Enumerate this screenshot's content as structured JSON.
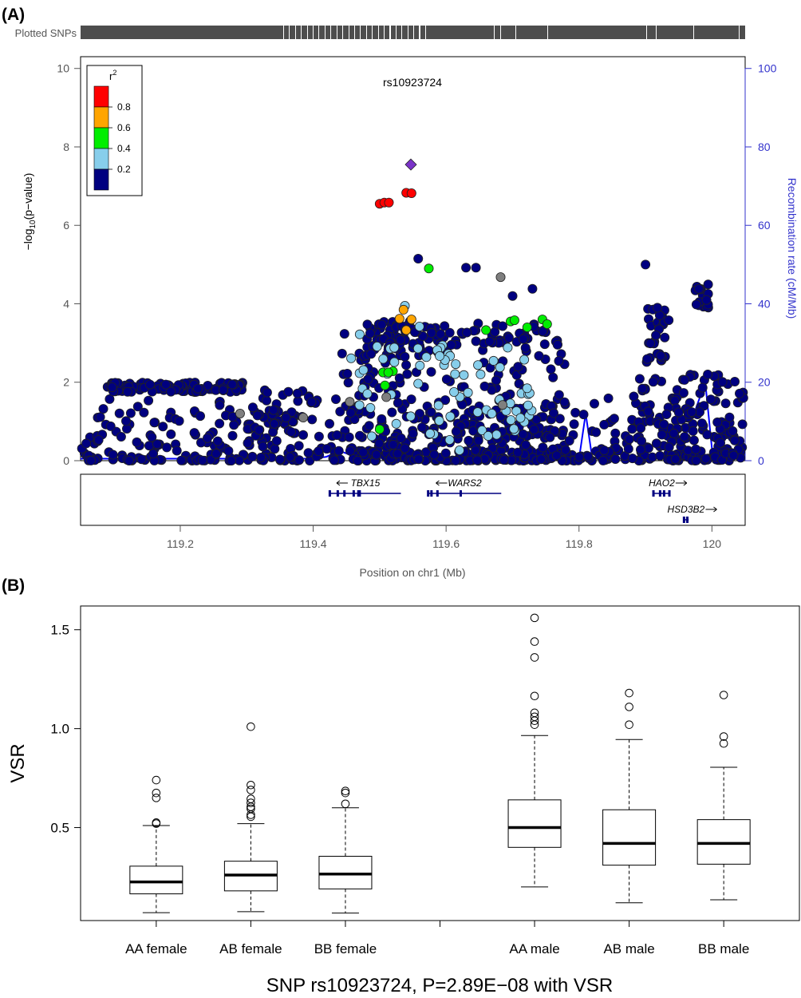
{
  "figure": {
    "panel_a_label": "(A)",
    "panel_b_label": "(B)"
  },
  "chart_data": [
    {
      "type": "scatter",
      "panel": "A",
      "strip_label": "Plotted SNPs",
      "title": "rs10923724",
      "xlabel": "Position on chr1 (Mb)",
      "ylabel_prefix": "−log",
      "ylabel_sub": "10",
      "ylabel_suffix": "(p−value)",
      "y2label": "Recombination rate (cM/Mb)",
      "xlim": [
        119.05,
        120.05
      ],
      "ylim": [
        0,
        10.3
      ],
      "y2lim": [
        0,
        103
      ],
      "xticks": [
        119.2,
        119.4,
        119.6,
        119.8,
        120
      ],
      "xtick_labels": [
        "119.2",
        "119.4",
        "119.6",
        "119.8",
        "120"
      ],
      "yticks": [
        0,
        2,
        4,
        6,
        8,
        10
      ],
      "y2ticks": [
        0,
        20,
        40,
        60,
        80,
        100
      ],
      "legend": {
        "title": "r",
        "title_sup": "2",
        "placement": "top-left",
        "labels": [
          "0.8",
          "0.6",
          "0.4",
          "0.2"
        ],
        "colors": [
          "#ff0000",
          "#ffa500",
          "#00ee00",
          "#87ceeb",
          "#000080"
        ]
      },
      "colors": {
        "r2_high": "#ff0000",
        "r2_0.6": "#ffa500",
        "r2_0.4": "#00ee00",
        "r2_0.2": "#87ceeb",
        "r2_low": "#000080",
        "no_ld": "#7f7f7f",
        "lead_snp": "#7a33c8",
        "recomb_line": "#0000ff"
      },
      "lead_snp": {
        "x": 119.547,
        "y": 7.55
      },
      "red_points": [
        [
          119.5,
          6.55
        ],
        [
          119.507,
          6.58
        ],
        [
          119.514,
          6.58
        ],
        [
          119.54,
          6.83
        ],
        [
          119.548,
          6.82
        ]
      ],
      "orange_points": [
        [
          119.536,
          3.85
        ],
        [
          119.53,
          3.62
        ],
        [
          119.548,
          3.6
        ],
        [
          119.54,
          3.33
        ]
      ],
      "green_points": [
        [
          119.574,
          4.9
        ],
        [
          119.66,
          3.33
        ],
        [
          119.697,
          3.55
        ],
        [
          119.703,
          3.58
        ],
        [
          119.722,
          3.4
        ],
        [
          119.745,
          3.6
        ],
        [
          119.752,
          3.48
        ],
        [
          119.505,
          2.25
        ],
        [
          119.52,
          2.28
        ],
        [
          119.513,
          2.25
        ],
        [
          119.508,
          1.92
        ],
        [
          119.5,
          0.8
        ]
      ],
      "grey_points": [
        [
          119.682,
          4.68
        ],
        [
          119.385,
          1.1
        ],
        [
          119.685,
          1.42
        ],
        [
          119.455,
          1.5
        ],
        [
          119.51,
          1.62
        ],
        [
          119.29,
          1.2
        ]
      ],
      "recombination": [
        [
          119.05,
          0.5
        ],
        [
          119.4,
          0.5
        ],
        [
          119.42,
          1.0
        ],
        [
          119.44,
          2.5
        ],
        [
          119.46,
          1.2
        ],
        [
          119.48,
          0.8
        ],
        [
          119.55,
          0.5
        ],
        [
          119.6,
          0.5
        ],
        [
          119.7,
          0.5
        ],
        [
          119.8,
          0.5
        ],
        [
          119.81,
          12
        ],
        [
          119.82,
          0.6
        ],
        [
          119.9,
          0.5
        ],
        [
          119.95,
          1.0
        ],
        [
          119.99,
          20
        ],
        [
          120.0,
          3
        ],
        [
          120.05,
          1.5
        ]
      ],
      "genes": [
        {
          "name": "TBX15",
          "start": 119.425,
          "end": 119.532,
          "strand": "-",
          "row": 0,
          "exons": [
            119.425,
            119.437,
            119.447,
            119.461,
            119.468,
            119.47
          ]
        },
        {
          "name": "WARS2",
          "start": 119.573,
          "end": 119.683,
          "strand": "-",
          "row": 0,
          "exons": [
            119.573,
            119.578,
            119.587,
            119.622
          ]
        },
        {
          "name": "HAO2",
          "start": 119.912,
          "end": 119.937,
          "strand": "+",
          "row": 0,
          "exons": [
            119.912,
            119.922,
            119.928,
            119.936
          ]
        },
        {
          "name": "HSD3B2",
          "start": 119.957,
          "end": 119.965,
          "strand": "+",
          "row": 1,
          "exons": [
            119.958,
            119.963
          ]
        }
      ]
    },
    {
      "type": "box",
      "panel": "B",
      "ylabel": "VSR",
      "xlabel": "SNP rs10923724, P=2.89E−08 with VSR",
      "ylim": [
        0.03,
        1.62
      ],
      "yticks": [
        0.5,
        1.0,
        1.5
      ],
      "ytick_labels": [
        "0.5",
        "1.0",
        "1.5"
      ],
      "categories": [
        "AA female",
        "AB female",
        "BB female",
        "AA male",
        "AB male",
        "BB male"
      ],
      "boxes": [
        {
          "label": "AA female",
          "whisker_low": 0.07,
          "q1": 0.165,
          "median": 0.225,
          "q3": 0.305,
          "whisker_high": 0.51,
          "outliers": [
            0.52,
            0.525,
            0.65,
            0.675,
            0.74
          ]
        },
        {
          "label": "AB female",
          "whisker_low": 0.075,
          "q1": 0.18,
          "median": 0.26,
          "q3": 0.33,
          "whisker_high": 0.52,
          "outliers": [
            0.555,
            0.565,
            0.595,
            0.605,
            0.625,
            0.645,
            0.69,
            0.715,
            1.01
          ]
        },
        {
          "label": "BB female",
          "whisker_low": 0.068,
          "q1": 0.19,
          "median": 0.265,
          "q3": 0.355,
          "whisker_high": 0.6,
          "outliers": [
            0.62,
            0.675,
            0.685
          ]
        },
        {
          "label": "AA male",
          "whisker_low": 0.2,
          "q1": 0.4,
          "median": 0.5,
          "q3": 0.64,
          "whisker_high": 0.965,
          "outliers": [
            1.02,
            1.04,
            1.06,
            1.08,
            1.165,
            1.36,
            1.44,
            1.56
          ]
        },
        {
          "label": "AB male",
          "whisker_low": 0.12,
          "q1": 0.31,
          "median": 0.42,
          "q3": 0.59,
          "whisker_high": 0.945,
          "outliers": [
            1.02,
            1.11,
            1.18
          ]
        },
        {
          "label": "BB male",
          "whisker_low": 0.135,
          "q1": 0.315,
          "median": 0.42,
          "q3": 0.54,
          "whisker_high": 0.805,
          "outliers": [
            0.925,
            0.96,
            1.17
          ]
        }
      ]
    }
  ]
}
